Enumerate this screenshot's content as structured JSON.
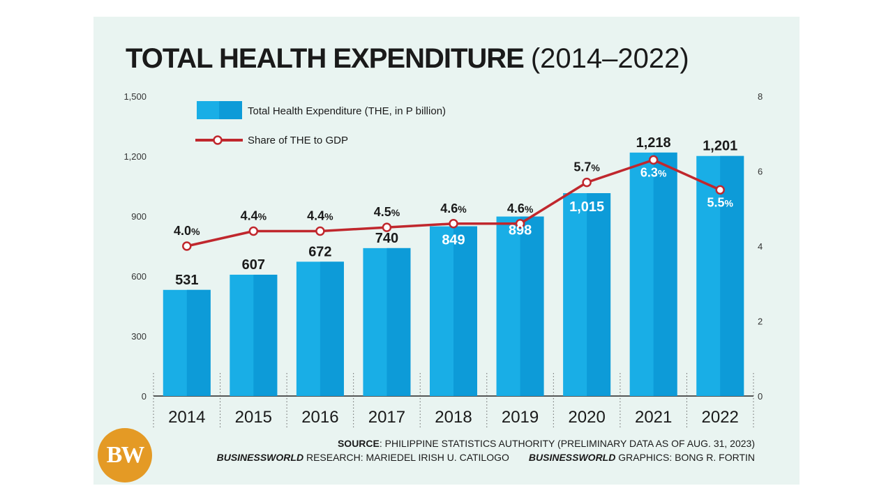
{
  "header": {
    "title_main": "TOTAL HEALTH EXPENDITURE",
    "title_range": "(2014–2022)"
  },
  "legend": {
    "bar_label": "Total Health Expenditure (THE, in P billion)",
    "line_label": "Share of THE to GDP"
  },
  "colors": {
    "bar": "#19aee6",
    "bar_shade": "#0d9bd8",
    "line": "#c0272d",
    "label_dark": "#1a1a1a",
    "label_light": "#ffffff"
  },
  "chart_data": {
    "type": "bar",
    "title": "TOTAL HEALTH EXPENDITURE (2014–2022)",
    "categories": [
      "2014",
      "2015",
      "2016",
      "2017",
      "2018",
      "2019",
      "2020",
      "2021",
      "2022"
    ],
    "series": [
      {
        "name": "Total Health Expenditure (THE, in P billion)",
        "type": "bar",
        "axis": "left",
        "values": [
          531,
          607,
          672,
          740,
          849,
          898,
          1015,
          1218,
          1201
        ],
        "labels": [
          "531",
          "607",
          "672",
          "740",
          "849",
          "898",
          "1,015",
          "1,218",
          "1,201"
        ],
        "label_inside": [
          false,
          false,
          false,
          false,
          true,
          true,
          true,
          false,
          false
        ]
      },
      {
        "name": "Share of THE to GDP",
        "type": "line",
        "axis": "right",
        "values": [
          4.0,
          4.4,
          4.4,
          4.5,
          4.6,
          4.6,
          5.7,
          6.3,
          5.5
        ],
        "labels": [
          "4.0",
          "4.4",
          "4.4",
          "4.5",
          "4.6",
          "4.6",
          "5.7",
          "6.3",
          "5.5"
        ],
        "label_inside": [
          false,
          false,
          false,
          false,
          false,
          false,
          false,
          true,
          true
        ]
      }
    ],
    "pct_suffix": "%",
    "y_left": {
      "min": 0,
      "max": 1500,
      "ticks": [
        0,
        300,
        600,
        900,
        1200,
        1500
      ],
      "tick_labels": [
        "0",
        "300",
        "600",
        "900",
        "1,200",
        "1,500"
      ]
    },
    "y_right": {
      "min": 0,
      "max": 8,
      "ticks": [
        0,
        2,
        4,
        6,
        8
      ],
      "tick_labels": [
        "0",
        "2",
        "4",
        "6",
        "8"
      ]
    }
  },
  "footer": {
    "source_label": "SOURCE",
    "source_text": ": PHILIPPINE STATISTICS AUTHORITY (PRELIMINARY DATA AS OF AUG. 31, 2023)",
    "research_brand": "BUSINESSWORLD",
    "research_text": " RESEARCH: MARIEDEL IRISH U. CATILOGO",
    "graphics_brand": "BUSINESSWORLD",
    "graphics_text": " GRAPHICS: BONG R. FORTIN",
    "logo_text": "BW"
  }
}
